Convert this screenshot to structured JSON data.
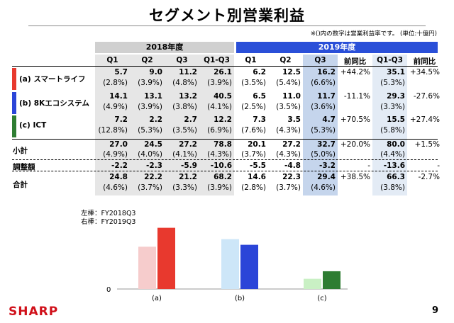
{
  "title": "セグメント別営業利益",
  "note": "※()内の数字は営業利益率です。 (単位:十億円)",
  "years": {
    "y2018": "2018年度",
    "y2019": "2019年度"
  },
  "col_headers_2018": [
    "Q1",
    "Q2",
    "Q3",
    "Q1-Q3"
  ],
  "col_headers_2019": [
    "Q1",
    "Q2",
    "Q3",
    "前同比",
    "Q1-Q3",
    "前同比"
  ],
  "segments": [
    {
      "label": "(a) スマートライフ",
      "color": "#e8392e",
      "values": [
        "5.7",
        "9.0",
        "11.2",
        "26.1",
        "6.2",
        "12.5",
        "16.2",
        "+44.2%",
        "35.1",
        "+34.5%"
      ],
      "ratios": [
        "(2.8%)",
        "(3.9%)",
        "(4.8%)",
        "(3.9%)",
        "(3.5%)",
        "(5.4%)",
        "(6.6%)",
        "",
        "(5.3%)",
        ""
      ]
    },
    {
      "label": "(b) 8Kエコシステム",
      "color": "#2b45d8",
      "values": [
        "14.1",
        "13.1",
        "13.2",
        "40.5",
        "6.5",
        "11.0",
        "11.7",
        "-11.1%",
        "29.3",
        "-27.6%"
      ],
      "ratios": [
        "(4.9%)",
        "(3.9%)",
        "(3.8%)",
        "(4.1%)",
        "(2.5%)",
        "(3.5%)",
        "(3.6%)",
        "",
        "(3.3%)",
        ""
      ]
    },
    {
      "label": "(c) ICT",
      "color": "#2e7d32",
      "values": [
        "7.2",
        "2.2",
        "2.7",
        "12.2",
        "7.3",
        "3.5",
        "4.7",
        "+70.5%",
        "15.5",
        "+27.4%"
      ],
      "ratios": [
        "(12.8%)",
        "(5.3%)",
        "(3.5%)",
        "(6.9%)",
        "(7.6%)",
        "(4.3%)",
        "(5.3%)",
        "",
        "(5.8%)",
        ""
      ]
    }
  ],
  "subtotal": {
    "label": "小計",
    "values": [
      "27.0",
      "24.5",
      "27.2",
      "78.8",
      "20.1",
      "27.2",
      "32.7",
      "+20.0%",
      "80.0",
      "+1.5%"
    ],
    "ratios": [
      "(4.9%)",
      "(4.0%)",
      "(4.1%)",
      "(4.3%)",
      "(3.7%)",
      "(4.3%)",
      "(5.0%)",
      "",
      "(4.4%)",
      ""
    ]
  },
  "adjustment": {
    "label": "調整額",
    "values": [
      "-2.2",
      "-2.3",
      "-5.9",
      "-10.6",
      "-5.5",
      "-4.8",
      "-3.2",
      "-",
      "-13.6",
      "-"
    ]
  },
  "total": {
    "label": "合計",
    "values": [
      "24.8",
      "22.2",
      "21.2",
      "68.2",
      "14.6",
      "22.3",
      "29.4",
      "+38.5%",
      "66.3",
      "-2.7%"
    ],
    "ratios": [
      "(4.6%)",
      "(3.7%)",
      "(3.3%)",
      "(3.9%)",
      "(2.8%)",
      "(3.7%)",
      "(4.6%)",
      "",
      "(3.8%)",
      ""
    ]
  },
  "legend": {
    "left": "左棒：FY2018Q3",
    "right": "右棒：FY2019Q3"
  },
  "chart_data": {
    "type": "bar",
    "categories": [
      "(a)",
      "(b)",
      "(c)"
    ],
    "series": [
      {
        "name": "FY2018Q3",
        "values": [
          11.2,
          13.2,
          2.7
        ],
        "colors": [
          "#f6cccc",
          "#cde6f8",
          "#c9f0c4"
        ]
      },
      {
        "name": "FY2019Q3",
        "values": [
          16.2,
          11.7,
          4.7
        ],
        "colors": [
          "#e8392e",
          "#2b45d8",
          "#2e7d32"
        ]
      }
    ],
    "ylabel": "",
    "xlabel": "",
    "y_tick_label": "0",
    "ylim": [
      0,
      18
    ]
  },
  "footer": {
    "brand": "SHARP",
    "page": "9"
  }
}
